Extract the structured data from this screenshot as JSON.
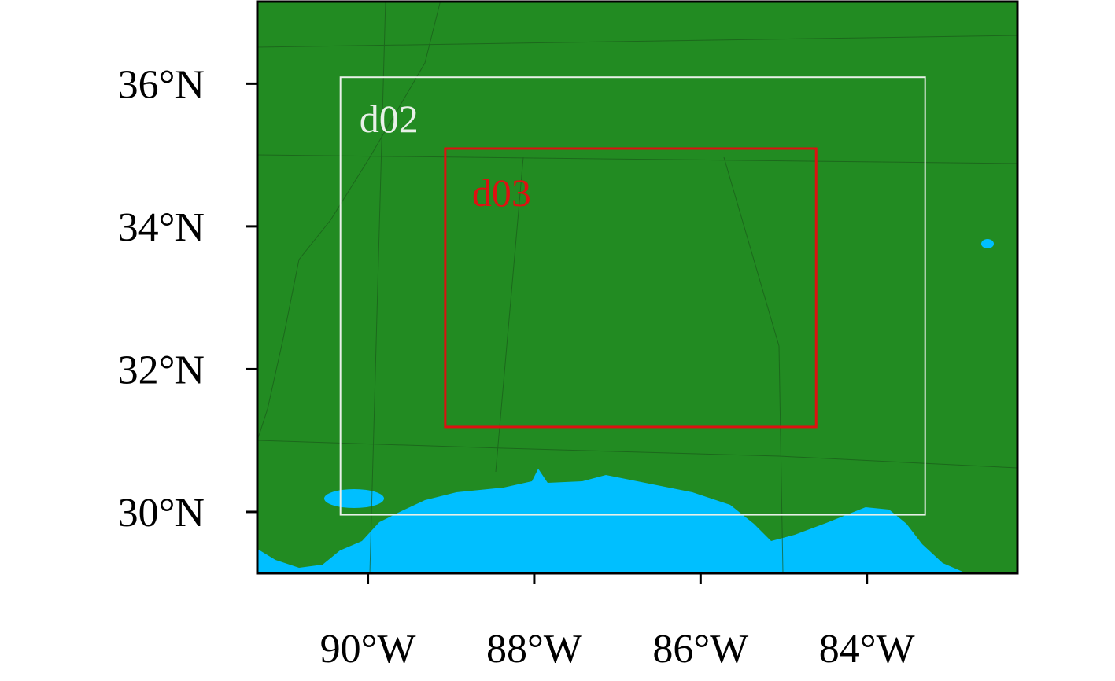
{
  "map": {
    "xlim": [
      -91.33,
      -82.19
    ],
    "ylim": [
      29.14,
      37.15
    ],
    "xticks": [
      {
        "value": -90,
        "label": "90°W"
      },
      {
        "value": -88,
        "label": "88°W"
      },
      {
        "value": -86,
        "label": "86°W"
      },
      {
        "value": -84,
        "label": "84°W"
      }
    ],
    "yticks": [
      {
        "value": 30,
        "label": "30°N"
      },
      {
        "value": 32,
        "label": "32°N"
      },
      {
        "value": 34,
        "label": "34°N"
      },
      {
        "value": 36,
        "label": "36°N"
      }
    ],
    "land_color": "#228b22",
    "water_color": "#00bfff",
    "domains": [
      {
        "label": "d02",
        "lon": [
          -90.33,
          -83.3
        ],
        "lat": [
          29.96,
          36.09
        ],
        "color": "#e8f0e8"
      },
      {
        "label": "d03",
        "lon": [
          -89.07,
          -84.61
        ],
        "lat": [
          31.19,
          35.09
        ],
        "color": "#dd1111"
      }
    ]
  }
}
